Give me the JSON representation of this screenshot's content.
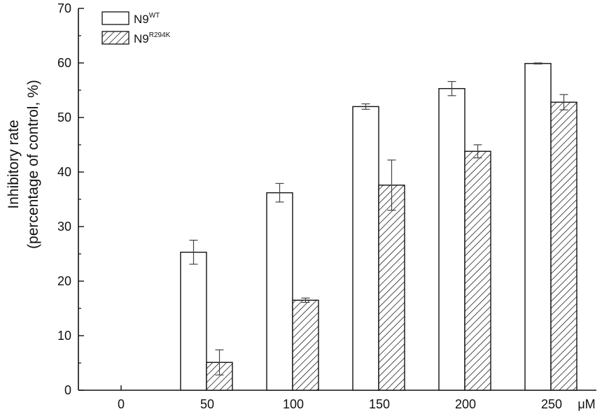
{
  "chart_data": {
    "type": "bar",
    "categories": [
      "0",
      "50",
      "100",
      "150",
      "200",
      "250"
    ],
    "x_unit": "μM",
    "ylabel_line1": "Inhibitory rate",
    "ylabel_line2": "(percentage of control, %)",
    "ylim": [
      0,
      70
    ],
    "yticks": [
      0,
      10,
      20,
      30,
      40,
      50,
      60,
      70
    ],
    "grid": false,
    "legend_position": "top-left",
    "series": [
      {
        "name": "N9",
        "name_sup": "WT",
        "fill": "open",
        "values": [
          null,
          25.3,
          36.2,
          52.0,
          55.3,
          59.9
        ],
        "errors": [
          null,
          2.2,
          1.7,
          0.5,
          1.3,
          0.1
        ]
      },
      {
        "name": "N9",
        "name_sup": "R294K",
        "fill": "hatched",
        "values": [
          null,
          5.1,
          16.5,
          37.6,
          43.8,
          52.8
        ],
        "errors": [
          null,
          2.3,
          0.4,
          4.6,
          1.2,
          1.4
        ]
      }
    ]
  }
}
